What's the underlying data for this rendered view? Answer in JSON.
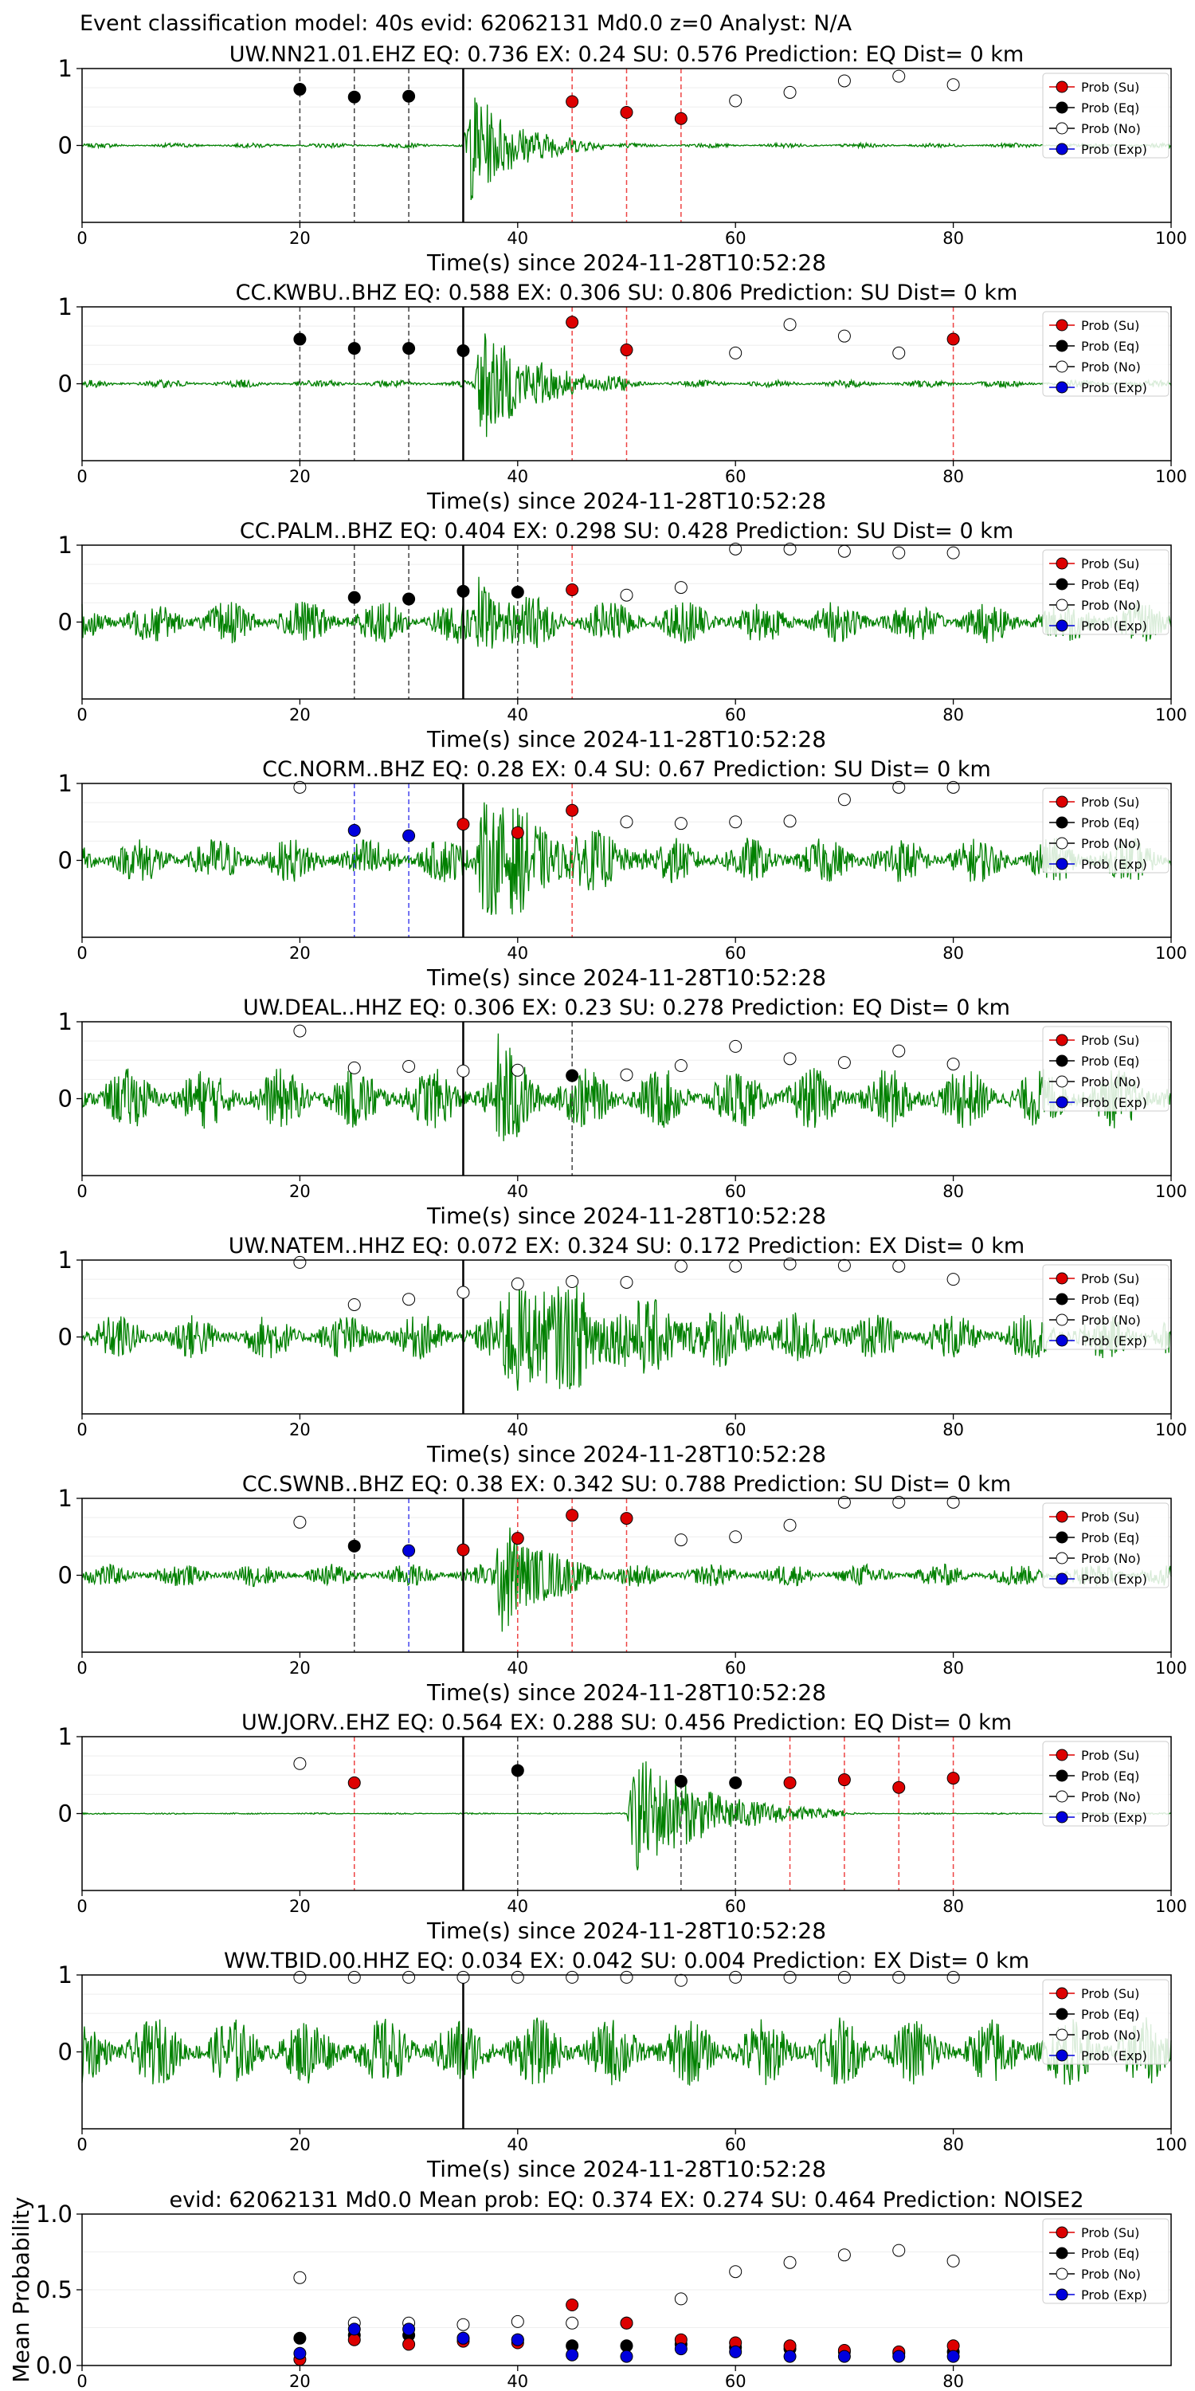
{
  "figure": {
    "suptitle": "Event classification model: 40s evid: 62062131 Md0.0 z=0 Analyst: N/A",
    "xlabel": "Time(s) since 2024-11-28T10:52:28",
    "legend_labels": [
      "Prob (Su)",
      "Prob (Eq)",
      "Prob (No)",
      "Prob (Exp)"
    ]
  },
  "colors": {
    "su": "#dd0000",
    "eq": "#000000",
    "no": "#ffffff",
    "exp": "#0000dd",
    "waveform": "#008000",
    "pick_line": "#000000"
  },
  "chart_data": [
    {
      "type": "line",
      "title": "UW.NN21.01.EHZ   EQ: 0.736  EX: 0.24  SU: 0.576   Prediction: EQ    Dist= 0 km",
      "xlabel": "Time(s) since 2024-11-28T10:52:28",
      "xlim": [
        0,
        100
      ],
      "ylim": [
        -1,
        1
      ],
      "xticks": [
        0,
        20,
        40,
        60,
        80,
        100
      ],
      "yticks": [
        0,
        1
      ],
      "p_arrival": 35,
      "noise_level": 0.03,
      "event": {
        "start": 35,
        "end": 48,
        "amp": 0.85
      },
      "points": {
        "su": [
          [
            45,
            0.57
          ],
          [
            50,
            0.43
          ],
          [
            55,
            0.35
          ]
        ],
        "eq": [
          [
            20,
            0.73
          ],
          [
            25,
            0.63
          ],
          [
            30,
            0.64
          ]
        ],
        "no": [
          [
            60,
            0.58
          ],
          [
            65,
            0.69
          ],
          [
            70,
            0.84
          ],
          [
            75,
            0.9
          ],
          [
            80,
            0.79
          ]
        ],
        "exp": []
      },
      "dashed": [
        [
          20,
          "eq"
        ],
        [
          25,
          "eq"
        ],
        [
          30,
          "eq"
        ],
        [
          45,
          "su"
        ],
        [
          50,
          "su"
        ],
        [
          55,
          "su"
        ]
      ],
      "legend": [
        "Prob (Su)",
        "Prob (Eq)",
        "Prob (No)",
        "Prob (Exp)"
      ]
    },
    {
      "type": "line",
      "title": "CC.KWBU..BHZ   EQ: 0.588  EX: 0.306  SU: 0.806   Prediction: SU    Dist= 0 km",
      "xlabel": "Time(s) since 2024-11-28T10:52:28",
      "xlim": [
        0,
        100
      ],
      "ylim": [
        -1,
        1
      ],
      "xticks": [
        0,
        20,
        40,
        60,
        80,
        100
      ],
      "yticks": [
        0,
        1
      ],
      "p_arrival": 35,
      "noise_level": 0.05,
      "event": {
        "start": 36,
        "end": 50,
        "amp": 0.9
      },
      "points": {
        "su": [
          [
            45,
            0.8
          ],
          [
            50,
            0.44
          ],
          [
            80,
            0.58
          ]
        ],
        "eq": [
          [
            20,
            0.58
          ],
          [
            25,
            0.46
          ],
          [
            30,
            0.46
          ],
          [
            35,
            0.43
          ]
        ],
        "no": [
          [
            60,
            0.4
          ],
          [
            65,
            0.77
          ],
          [
            70,
            0.62
          ],
          [
            75,
            0.4
          ]
        ],
        "exp": []
      },
      "dashed": [
        [
          20,
          "eq"
        ],
        [
          25,
          "eq"
        ],
        [
          30,
          "eq"
        ],
        [
          45,
          "su"
        ],
        [
          50,
          "su"
        ],
        [
          80,
          "su"
        ]
      ],
      "legend": [
        "Prob (Su)",
        "Prob (Eq)",
        "Prob (No)",
        "Prob (Exp)"
      ]
    },
    {
      "type": "line",
      "title": "CC.PALM..BHZ   EQ: 0.404  EX: 0.298  SU: 0.428   Prediction: SU    Dist= 0 km",
      "xlabel": "Time(s) since 2024-11-28T10:52:28",
      "xlim": [
        0,
        100
      ],
      "ylim": [
        -1,
        1
      ],
      "xticks": [
        0,
        20,
        40,
        60,
        80,
        100
      ],
      "yticks": [
        0,
        1
      ],
      "p_arrival": 35,
      "noise_level": 0.28,
      "event": {
        "start": 36,
        "end": 44,
        "amp": 0.55
      },
      "points": {
        "su": [
          [
            45,
            0.42
          ]
        ],
        "eq": [
          [
            25,
            0.32
          ],
          [
            30,
            0.3
          ],
          [
            35,
            0.4
          ],
          [
            40,
            0.39
          ]
        ],
        "no": [
          [
            50,
            0.35
          ],
          [
            55,
            0.45
          ],
          [
            60,
            0.95
          ],
          [
            65,
            0.95
          ],
          [
            70,
            0.92
          ],
          [
            75,
            0.9
          ],
          [
            80,
            0.9
          ]
        ],
        "exp": []
      },
      "dashed": [
        [
          25,
          "eq"
        ],
        [
          30,
          "eq"
        ],
        [
          40,
          "eq"
        ],
        [
          45,
          "su"
        ]
      ],
      "legend": [
        "Prob (Su)",
        "Prob (Eq)",
        "Prob (No)",
        "Prob (Exp)"
      ]
    },
    {
      "type": "line",
      "title": "CC.NORM..BHZ   EQ: 0.28  EX: 0.4  SU: 0.67   Prediction: SU    Dist= 0 km",
      "xlabel": "Time(s) since 2024-11-28T10:52:28",
      "xlim": [
        0,
        100
      ],
      "ylim": [
        -1,
        1
      ],
      "xticks": [
        0,
        20,
        40,
        60,
        80,
        100
      ],
      "yticks": [
        0,
        1
      ],
      "p_arrival": 35,
      "noise_level": 0.3,
      "event": {
        "start": 36,
        "end": 52,
        "amp": 0.85
      },
      "points": {
        "su": [
          [
            35,
            0.47
          ],
          [
            40,
            0.36
          ],
          [
            45,
            0.65
          ]
        ],
        "eq": [],
        "no": [
          [
            20,
            0.95
          ],
          [
            50,
            0.5
          ],
          [
            55,
            0.48
          ],
          [
            60,
            0.5
          ],
          [
            65,
            0.51
          ],
          [
            70,
            0.79
          ],
          [
            75,
            0.95
          ],
          [
            80,
            0.95
          ]
        ],
        "exp": [
          [
            25,
            0.39
          ],
          [
            30,
            0.32
          ]
        ]
      },
      "dashed": [
        [
          25,
          "exp"
        ],
        [
          30,
          "exp"
        ],
        [
          45,
          "su"
        ]
      ],
      "legend": [
        "Prob (Su)",
        "Prob (Eq)",
        "Prob (No)",
        "Prob (Exp)"
      ]
    },
    {
      "type": "line",
      "title": "UW.DEAL..HHZ   EQ: 0.306  EX: 0.23  SU: 0.278   Prediction: EQ    Dist= 0 km",
      "xlabel": "Time(s) since 2024-11-28T10:52:28",
      "xlim": [
        0,
        100
      ],
      "ylim": [
        -1,
        1
      ],
      "xticks": [
        0,
        20,
        40,
        60,
        80,
        100
      ],
      "yticks": [
        0,
        1
      ],
      "p_arrival": 35,
      "noise_level": 0.4,
      "event": {
        "start": 38,
        "end": 43,
        "amp": 0.7
      },
      "points": {
        "su": [],
        "eq": [
          [
            45,
            0.3
          ]
        ],
        "no": [
          [
            20,
            0.88
          ],
          [
            25,
            0.4
          ],
          [
            30,
            0.42
          ],
          [
            35,
            0.36
          ],
          [
            40,
            0.37
          ],
          [
            50,
            0.31
          ],
          [
            55,
            0.43
          ],
          [
            60,
            0.68
          ],
          [
            65,
            0.52
          ],
          [
            70,
            0.47
          ],
          [
            75,
            0.62
          ],
          [
            80,
            0.45
          ]
        ],
        "exp": []
      },
      "dashed": [
        [
          45,
          "eq"
        ]
      ],
      "legend": [
        "Prob (Su)",
        "Prob (Eq)",
        "Prob (No)",
        "Prob (Exp)"
      ]
    },
    {
      "type": "line",
      "title": "UW.NATEM..HHZ   EQ: 0.072  EX: 0.324  SU: 0.172   Prediction: EX    Dist= 0 km",
      "xlabel": "Time(s) since 2024-11-28T10:52:28",
      "xlim": [
        0,
        100
      ],
      "ylim": [
        -1,
        1
      ],
      "xticks": [
        0,
        20,
        40,
        60,
        80,
        100
      ],
      "yticks": [
        0,
        1
      ],
      "p_arrival": 35,
      "noise_level": 0.3,
      "event": {
        "start": 38,
        "end": 72,
        "amp": 0.75
      },
      "points": {
        "su": [],
        "eq": [],
        "no": [
          [
            20,
            0.97
          ],
          [
            25,
            0.42
          ],
          [
            30,
            0.49
          ],
          [
            35,
            0.58
          ],
          [
            40,
            0.69
          ],
          [
            45,
            0.72
          ],
          [
            50,
            0.71
          ],
          [
            55,
            0.92
          ],
          [
            60,
            0.92
          ],
          [
            65,
            0.95
          ],
          [
            70,
            0.93
          ],
          [
            75,
            0.92
          ],
          [
            80,
            0.75
          ]
        ],
        "exp": []
      },
      "dashed": [],
      "legend": [
        "Prob (Su)",
        "Prob (Eq)",
        "Prob (No)",
        "Prob (Exp)"
      ]
    },
    {
      "type": "line",
      "title": "CC.SWNB..BHZ   EQ: 0.38  EX: 0.342  SU: 0.788   Prediction: SU    Dist= 0 km",
      "xlabel": "Time(s) since 2024-11-28T10:52:28",
      "xlim": [
        0,
        100
      ],
      "ylim": [
        -1,
        1
      ],
      "xticks": [
        0,
        20,
        40,
        60,
        80,
        100
      ],
      "yticks": [
        0,
        1
      ],
      "p_arrival": 35,
      "noise_level": 0.15,
      "event": {
        "start": 38,
        "end": 48,
        "amp": 0.9
      },
      "points": {
        "su": [
          [
            35,
            0.33
          ],
          [
            40,
            0.48
          ],
          [
            45,
            0.78
          ],
          [
            50,
            0.74
          ]
        ],
        "eq": [
          [
            25,
            0.38
          ]
        ],
        "no": [
          [
            20,
            0.69
          ],
          [
            55,
            0.46
          ],
          [
            60,
            0.5
          ],
          [
            65,
            0.65
          ],
          [
            70,
            0.95
          ],
          [
            75,
            0.95
          ],
          [
            80,
            0.95
          ]
        ],
        "exp": [
          [
            30,
            0.32
          ]
        ]
      },
      "dashed": [
        [
          25,
          "eq"
        ],
        [
          30,
          "exp"
        ],
        [
          40,
          "su"
        ],
        [
          45,
          "su"
        ],
        [
          50,
          "su"
        ]
      ],
      "legend": [
        "Prob (Su)",
        "Prob (Eq)",
        "Prob (No)",
        "Prob (Exp)"
      ]
    },
    {
      "type": "line",
      "title": "UW.JORV..EHZ   EQ: 0.564  EX: 0.288  SU: 0.456   Prediction: EQ    Dist= 0 km",
      "xlabel": "Time(s) since 2024-11-28T10:52:28",
      "xlim": [
        0,
        100
      ],
      "ylim": [
        -1,
        1
      ],
      "xticks": [
        0,
        20,
        40,
        60,
        80,
        100
      ],
      "yticks": [
        0,
        1
      ],
      "p_arrival": 35,
      "noise_level": 0.01,
      "event": {
        "start": 50,
        "end": 70,
        "amp": 0.9
      },
      "points": {
        "su": [
          [
            25,
            0.4
          ],
          [
            65,
            0.4
          ],
          [
            70,
            0.44
          ],
          [
            75,
            0.34
          ],
          [
            80,
            0.46
          ]
        ],
        "eq": [
          [
            40,
            0.56
          ],
          [
            55,
            0.42
          ],
          [
            60,
            0.4
          ]
        ],
        "no": [
          [
            20,
            0.65
          ]
        ],
        "exp": []
      },
      "dashed": [
        [
          25,
          "su"
        ],
        [
          40,
          "eq"
        ],
        [
          55,
          "eq"
        ],
        [
          60,
          "eq"
        ],
        [
          65,
          "su"
        ],
        [
          70,
          "su"
        ],
        [
          75,
          "su"
        ],
        [
          80,
          "su"
        ]
      ],
      "legend": [
        "Prob (Su)",
        "Prob (Eq)",
        "Prob (No)",
        "Prob (Exp)"
      ]
    },
    {
      "type": "line",
      "title": "WW.TBID.00.HHZ   EQ: 0.034  EX: 0.042  SU: 0.004   Prediction: EX    Dist= 0 km",
      "xlabel": "Time(s) since 2024-11-28T10:52:28",
      "xlim": [
        0,
        100
      ],
      "ylim": [
        -1,
        1
      ],
      "xticks": [
        0,
        20,
        40,
        60,
        80,
        100
      ],
      "yticks": [
        0,
        1
      ],
      "p_arrival": 35,
      "noise_level": 0.45,
      "event": null,
      "points": {
        "su": [],
        "eq": [],
        "no": [
          [
            20,
            0.97
          ],
          [
            25,
            0.97
          ],
          [
            30,
            0.97
          ],
          [
            35,
            0.97
          ],
          [
            40,
            0.97
          ],
          [
            45,
            0.97
          ],
          [
            50,
            0.97
          ],
          [
            55,
            0.93
          ],
          [
            60,
            0.97
          ],
          [
            65,
            0.97
          ],
          [
            70,
            0.97
          ],
          [
            75,
            0.97
          ],
          [
            80,
            0.97
          ]
        ],
        "exp": []
      },
      "dashed": [],
      "legend": [
        "Prob (Su)",
        "Prob (Eq)",
        "Prob (No)",
        "Prob (Exp)"
      ]
    },
    {
      "type": "scatter",
      "title": "evid: 62062131  Md0.0   Mean prob:    EQ: 0.374  EX: 0.274  SU: 0.464   Prediction: NOISE2",
      "ylabel": "Mean Probability",
      "xlim": [
        0,
        100
      ],
      "ylim": [
        0,
        1
      ],
      "xticks": [
        0,
        20,
        40,
        60,
        80
      ],
      "yticks": [
        0.0,
        0.5,
        1.0
      ],
      "ytick_labels": [
        "0.0",
        "0.5",
        "1.0"
      ],
      "points": {
        "su": [
          [
            20,
            0.04
          ],
          [
            25,
            0.17
          ],
          [
            30,
            0.14
          ],
          [
            35,
            0.16
          ],
          [
            40,
            0.15
          ],
          [
            45,
            0.4
          ],
          [
            50,
            0.28
          ],
          [
            55,
            0.17
          ],
          [
            60,
            0.15
          ],
          [
            65,
            0.13
          ],
          [
            70,
            0.1
          ],
          [
            75,
            0.09
          ],
          [
            80,
            0.13
          ]
        ],
        "eq": [
          [
            20,
            0.18
          ],
          [
            25,
            0.2
          ],
          [
            30,
            0.2
          ],
          [
            35,
            0.18
          ],
          [
            40,
            0.17
          ],
          [
            45,
            0.13
          ],
          [
            50,
            0.13
          ],
          [
            55,
            0.14
          ],
          [
            60,
            0.12
          ],
          [
            65,
            0.11
          ],
          [
            70,
            0.09
          ],
          [
            75,
            0.08
          ],
          [
            80,
            0.09
          ]
        ],
        "no": [
          [
            20,
            0.58
          ],
          [
            25,
            0.28
          ],
          [
            30,
            0.28
          ],
          [
            35,
            0.27
          ],
          [
            40,
            0.29
          ],
          [
            45,
            0.28
          ],
          [
            50,
            0.28
          ],
          [
            55,
            0.44
          ],
          [
            60,
            0.62
          ],
          [
            65,
            0.68
          ],
          [
            70,
            0.73
          ],
          [
            75,
            0.76
          ],
          [
            80,
            0.69
          ]
        ],
        "exp": [
          [
            20,
            0.08
          ],
          [
            25,
            0.24
          ],
          [
            30,
            0.24
          ],
          [
            35,
            0.18
          ],
          [
            40,
            0.17
          ],
          [
            45,
            0.07
          ],
          [
            50,
            0.06
          ],
          [
            55,
            0.11
          ],
          [
            60,
            0.09
          ],
          [
            65,
            0.06
          ],
          [
            70,
            0.06
          ],
          [
            75,
            0.06
          ],
          [
            80,
            0.06
          ]
        ]
      },
      "legend": [
        "Prob (Su)",
        "Prob (Eq)",
        "Prob (No)",
        "Prob (Exp)"
      ]
    }
  ]
}
